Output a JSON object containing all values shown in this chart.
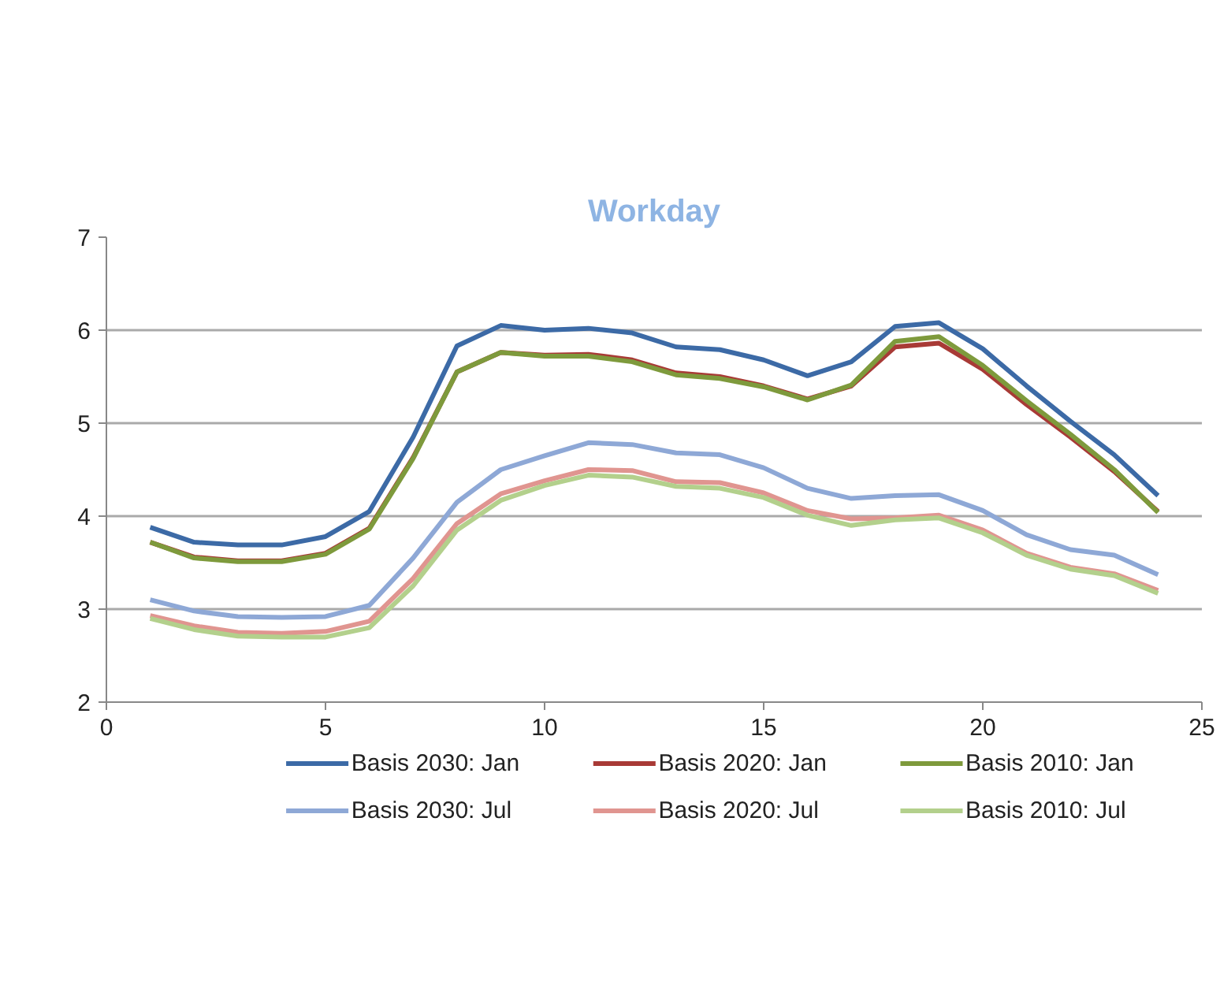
{
  "chart_data": {
    "type": "line",
    "title": "Workday",
    "x": [
      1,
      2,
      3,
      4,
      5,
      6,
      7,
      8,
      9,
      10,
      11,
      12,
      13,
      14,
      15,
      16,
      17,
      18,
      19,
      20,
      21,
      22,
      23,
      24
    ],
    "xlim": [
      0,
      25
    ],
    "xticks": [
      0,
      5,
      10,
      15,
      20,
      25
    ],
    "ylim": [
      2,
      7
    ],
    "yticks": [
      2,
      3,
      4,
      5,
      6,
      7
    ],
    "grid": "y",
    "legend": "bottom",
    "marker": "none",
    "line_style": "solid",
    "series": [
      {
        "name": "Basis 2030: Jan",
        "color": "#3c6aa6",
        "values": [
          3.88,
          3.72,
          3.69,
          3.69,
          3.78,
          4.05,
          4.85,
          5.83,
          6.05,
          6.0,
          6.02,
          5.97,
          5.82,
          5.79,
          5.68,
          5.51,
          5.66,
          6.04,
          6.08,
          5.8,
          5.4,
          5.02,
          4.66,
          4.22
        ]
      },
      {
        "name": "Basis 2020: Jan",
        "color": "#a83a36",
        "values": [
          3.72,
          3.56,
          3.52,
          3.52,
          3.6,
          3.87,
          4.63,
          5.55,
          5.76,
          5.73,
          5.74,
          5.68,
          5.54,
          5.5,
          5.4,
          5.26,
          5.4,
          5.82,
          5.86,
          5.58,
          5.2,
          4.85,
          4.48,
          4.05
        ]
      },
      {
        "name": "Basis 2010: Jan",
        "color": "#7e9a3c",
        "values": [
          3.72,
          3.55,
          3.51,
          3.51,
          3.59,
          3.86,
          4.62,
          5.55,
          5.76,
          5.72,
          5.72,
          5.66,
          5.52,
          5.48,
          5.39,
          5.25,
          5.41,
          5.88,
          5.93,
          5.62,
          5.24,
          4.88,
          4.5,
          4.04
        ]
      },
      {
        "name": "Basis 2030: Jul",
        "color": "#8ea8d6",
        "values": [
          3.1,
          2.98,
          2.92,
          2.91,
          2.92,
          3.04,
          3.55,
          4.15,
          4.5,
          4.65,
          4.79,
          4.77,
          4.68,
          4.66,
          4.52,
          4.3,
          4.19,
          4.22,
          4.23,
          4.06,
          3.8,
          3.64,
          3.58,
          3.37
        ]
      },
      {
        "name": "Basis 2020: Jul",
        "color": "#e09590",
        "values": [
          2.93,
          2.82,
          2.75,
          2.74,
          2.76,
          2.87,
          3.33,
          3.92,
          4.24,
          4.38,
          4.5,
          4.49,
          4.37,
          4.36,
          4.25,
          4.06,
          3.97,
          3.98,
          4.01,
          3.85,
          3.6,
          3.45,
          3.38,
          3.2
        ]
      },
      {
        "name": "Basis 2010: Jul",
        "color": "#b3d08c",
        "values": [
          2.9,
          2.78,
          2.71,
          2.7,
          2.7,
          2.8,
          3.25,
          3.85,
          4.17,
          4.33,
          4.44,
          4.42,
          4.32,
          4.3,
          4.2,
          4.01,
          3.9,
          3.96,
          3.98,
          3.82,
          3.58,
          3.43,
          3.36,
          3.17
        ]
      }
    ]
  }
}
